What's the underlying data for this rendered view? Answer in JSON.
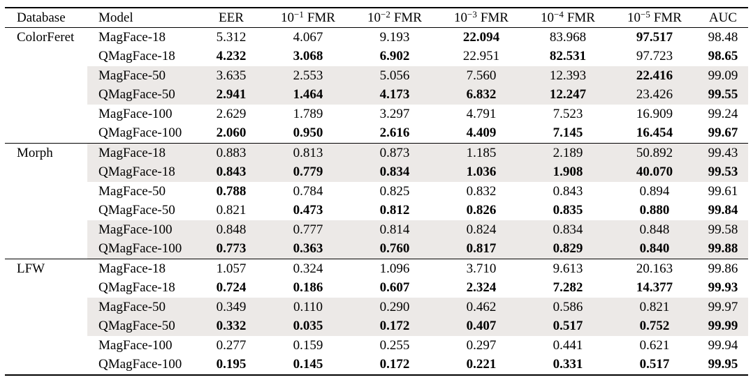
{
  "colors": {
    "background": "#ffffff",
    "text": "#000000",
    "rule": "#000000",
    "row_shading": "#ece9e7"
  },
  "table": {
    "header": {
      "database": "Database",
      "model": "Model",
      "eer": "EER",
      "fmr_cols": [
        {
          "base": "10",
          "exp": "−1",
          "suffix": "FMR"
        },
        {
          "base": "10",
          "exp": "−2",
          "suffix": "FMR"
        },
        {
          "base": "10",
          "exp": "−3",
          "suffix": "FMR"
        },
        {
          "base": "10",
          "exp": "−4",
          "suffix": "FMR"
        },
        {
          "base": "10",
          "exp": "−5",
          "suffix": "FMR"
        }
      ],
      "auc": "AUC"
    },
    "sections": [
      {
        "database": "ColorFeret",
        "rows": [
          {
            "model": "MagFace-18",
            "shaded": false,
            "values": [
              "5.312",
              "4.067",
              "9.193",
              "22.094",
              "83.968",
              "97.517",
              "98.48"
            ],
            "bold": [
              false,
              false,
              false,
              true,
              false,
              true,
              false
            ]
          },
          {
            "model": "QMagFace-18",
            "shaded": false,
            "values": [
              "4.232",
              "3.068",
              "6.902",
              "22.951",
              "82.531",
              "97.723",
              "98.65"
            ],
            "bold": [
              true,
              true,
              true,
              false,
              true,
              false,
              true
            ]
          },
          {
            "model": "MagFace-50",
            "shaded": true,
            "values": [
              "3.635",
              "2.553",
              "5.056",
              "7.560",
              "12.393",
              "22.416",
              "99.09"
            ],
            "bold": [
              false,
              false,
              false,
              false,
              false,
              true,
              false
            ]
          },
          {
            "model": "QMagFace-50",
            "shaded": true,
            "values": [
              "2.941",
              "1.464",
              "4.173",
              "6.832",
              "12.247",
              "23.426",
              "99.55"
            ],
            "bold": [
              true,
              true,
              true,
              true,
              true,
              false,
              true
            ]
          },
          {
            "model": "MagFace-100",
            "shaded": false,
            "values": [
              "2.629",
              "1.789",
              "3.297",
              "4.791",
              "7.523",
              "16.909",
              "99.24"
            ],
            "bold": [
              false,
              false,
              false,
              false,
              false,
              false,
              false
            ]
          },
          {
            "model": "QMagFace-100",
            "shaded": false,
            "values": [
              "2.060",
              "0.950",
              "2.616",
              "4.409",
              "7.145",
              "16.454",
              "99.67"
            ],
            "bold": [
              true,
              true,
              true,
              true,
              true,
              true,
              true
            ]
          }
        ]
      },
      {
        "database": "Morph",
        "rows": [
          {
            "model": "MagFace-18",
            "shaded": true,
            "values": [
              "0.883",
              "0.813",
              "0.873",
              "1.185",
              "2.189",
              "50.892",
              "99.43"
            ],
            "bold": [
              false,
              false,
              false,
              false,
              false,
              false,
              false
            ]
          },
          {
            "model": "QMagFace-18",
            "shaded": true,
            "values": [
              "0.843",
              "0.779",
              "0.834",
              "1.036",
              "1.908",
              "40.070",
              "99.53"
            ],
            "bold": [
              true,
              true,
              true,
              true,
              true,
              true,
              true
            ]
          },
          {
            "model": "MagFace-50",
            "shaded": false,
            "values": [
              "0.788",
              "0.784",
              "0.825",
              "0.832",
              "0.843",
              "0.894",
              "99.61"
            ],
            "bold": [
              true,
              false,
              false,
              false,
              false,
              false,
              false
            ]
          },
          {
            "model": "QMagFace-50",
            "shaded": false,
            "values": [
              "0.821",
              "0.473",
              "0.812",
              "0.826",
              "0.835",
              "0.880",
              "99.84"
            ],
            "bold": [
              false,
              true,
              true,
              true,
              true,
              true,
              true
            ]
          },
          {
            "model": "MagFace-100",
            "shaded": true,
            "values": [
              "0.848",
              "0.777",
              "0.814",
              "0.824",
              "0.834",
              "0.848",
              "99.58"
            ],
            "bold": [
              false,
              false,
              false,
              false,
              false,
              false,
              false
            ]
          },
          {
            "model": "QMagFace-100",
            "shaded": true,
            "values": [
              "0.773",
              "0.363",
              "0.760",
              "0.817",
              "0.829",
              "0.840",
              "99.88"
            ],
            "bold": [
              true,
              true,
              true,
              true,
              true,
              true,
              true
            ]
          }
        ]
      },
      {
        "database": "LFW",
        "rows": [
          {
            "model": "MagFace-18",
            "shaded": false,
            "values": [
              "1.057",
              "0.324",
              "1.096",
              "3.710",
              "9.613",
              "20.163",
              "99.86"
            ],
            "bold": [
              false,
              false,
              false,
              false,
              false,
              false,
              false
            ]
          },
          {
            "model": "QMagFace-18",
            "shaded": false,
            "values": [
              "0.724",
              "0.186",
              "0.607",
              "2.324",
              "7.282",
              "14.377",
              "99.93"
            ],
            "bold": [
              true,
              true,
              true,
              true,
              true,
              true,
              true
            ]
          },
          {
            "model": "MagFace-50",
            "shaded": true,
            "values": [
              "0.349",
              "0.110",
              "0.290",
              "0.462",
              "0.586",
              "0.821",
              "99.97"
            ],
            "bold": [
              false,
              false,
              false,
              false,
              false,
              false,
              false
            ]
          },
          {
            "model": "QMagFace-50",
            "shaded": true,
            "values": [
              "0.332",
              "0.035",
              "0.172",
              "0.407",
              "0.517",
              "0.752",
              "99.99"
            ],
            "bold": [
              true,
              true,
              true,
              true,
              true,
              true,
              true
            ]
          },
          {
            "model": "MagFace-100",
            "shaded": false,
            "values": [
              "0.277",
              "0.159",
              "0.255",
              "0.297",
              "0.441",
              "0.621",
              "99.94"
            ],
            "bold": [
              false,
              false,
              false,
              false,
              false,
              false,
              false
            ]
          },
          {
            "model": "QMagFace-100",
            "shaded": false,
            "values": [
              "0.195",
              "0.145",
              "0.172",
              "0.221",
              "0.331",
              "0.517",
              "99.95"
            ],
            "bold": [
              true,
              true,
              true,
              true,
              true,
              true,
              true
            ]
          }
        ]
      }
    ]
  }
}
